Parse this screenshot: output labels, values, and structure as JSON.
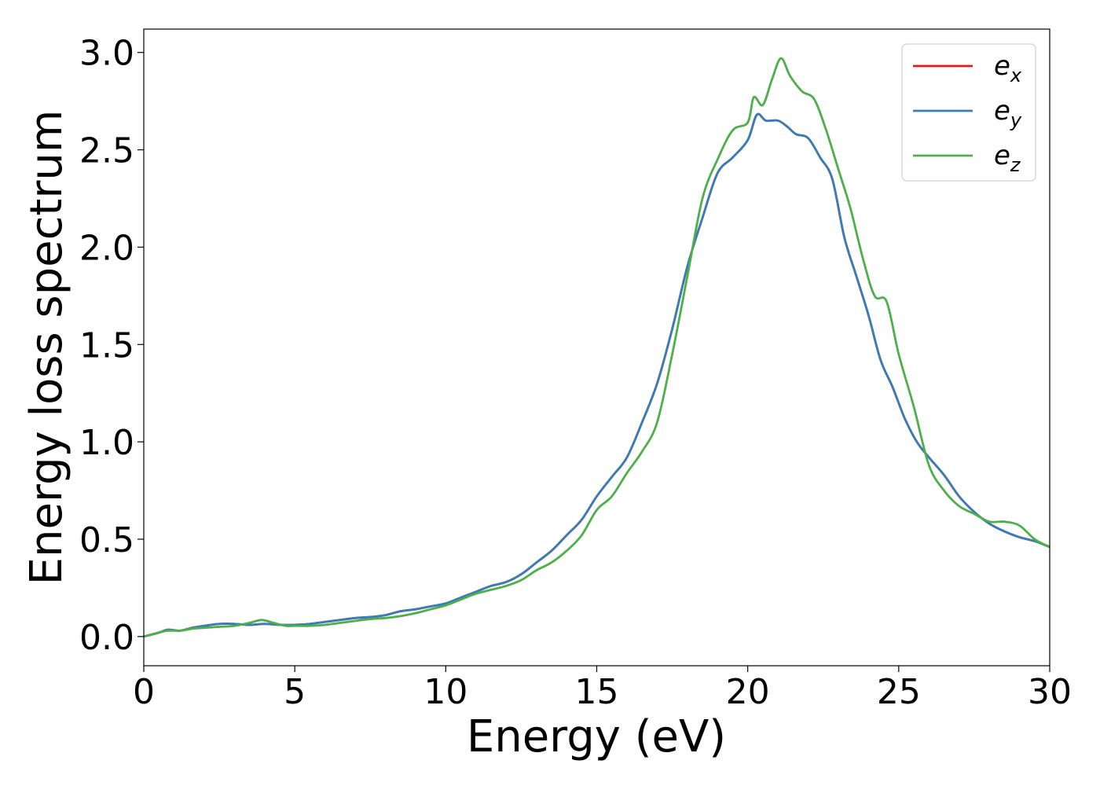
{
  "chart_data": {
    "type": "line",
    "title": "",
    "xlabel": "Energy (eV)",
    "ylabel": "Energy loss spectrum",
    "xlim": [
      0,
      30
    ],
    "ylim": [
      -0.15,
      3.12
    ],
    "xticks": [
      0,
      5,
      10,
      15,
      20,
      25,
      30
    ],
    "yticks": [
      0.0,
      0.5,
      1.0,
      1.5,
      2.0,
      2.5,
      3.0
    ],
    "xtick_labels": [
      "0",
      "5",
      "10",
      "15",
      "20",
      "25",
      "30"
    ],
    "ytick_labels": [
      "0.0",
      "0.5",
      "1.0",
      "1.5",
      "2.0",
      "2.5",
      "3.0"
    ],
    "grid": false,
    "legend_position": "top-right",
    "series": [
      {
        "name": "e_x",
        "label_base": "e",
        "label_sub": "x",
        "color": "#e41a1c",
        "x": [
          0,
          0.5,
          0.8,
          1.2,
          1.6,
          2,
          2.5,
          3,
          3.5,
          4,
          4.5,
          5,
          5.5,
          6,
          6.5,
          7,
          7.5,
          8,
          8.5,
          9,
          9.5,
          10,
          10.5,
          11,
          11.5,
          12,
          12.5,
          13,
          13.5,
          14,
          14.5,
          15,
          15.5,
          16,
          16.5,
          17,
          17.5,
          18,
          18.5,
          19,
          19.5,
          20,
          20.3,
          20.6,
          21,
          21.3,
          21.6,
          22,
          22.4,
          22.8,
          23.2,
          23.6,
          24,
          24.4,
          24.8,
          25.2,
          25.6,
          26,
          26.5,
          27,
          27.5,
          28,
          28.5,
          29,
          29.5,
          30
        ],
        "y": [
          0.0,
          0.02,
          0.035,
          0.03,
          0.045,
          0.055,
          0.065,
          0.065,
          0.06,
          0.065,
          0.06,
          0.06,
          0.065,
          0.075,
          0.085,
          0.095,
          0.1,
          0.11,
          0.13,
          0.14,
          0.155,
          0.17,
          0.2,
          0.23,
          0.26,
          0.28,
          0.32,
          0.38,
          0.44,
          0.52,
          0.6,
          0.72,
          0.82,
          0.92,
          1.1,
          1.3,
          1.58,
          1.9,
          2.15,
          2.38,
          2.46,
          2.55,
          2.68,
          2.65,
          2.65,
          2.62,
          2.58,
          2.56,
          2.46,
          2.35,
          2.05,
          1.85,
          1.65,
          1.42,
          1.28,
          1.12,
          1.0,
          0.92,
          0.83,
          0.72,
          0.64,
          0.58,
          0.54,
          0.51,
          0.49,
          0.46
        ]
      },
      {
        "name": "e_y",
        "label_base": "e",
        "label_sub": "y",
        "color": "#377eb8",
        "x": [
          0,
          0.5,
          0.8,
          1.2,
          1.6,
          2,
          2.5,
          3,
          3.5,
          4,
          4.5,
          5,
          5.5,
          6,
          6.5,
          7,
          7.5,
          8,
          8.5,
          9,
          9.5,
          10,
          10.5,
          11,
          11.5,
          12,
          12.5,
          13,
          13.5,
          14,
          14.5,
          15,
          15.5,
          16,
          16.5,
          17,
          17.5,
          18,
          18.5,
          19,
          19.5,
          20,
          20.3,
          20.6,
          21,
          21.3,
          21.6,
          22,
          22.4,
          22.8,
          23.2,
          23.6,
          24,
          24.4,
          24.8,
          25.2,
          25.6,
          26,
          26.5,
          27,
          27.5,
          28,
          28.5,
          29,
          29.5,
          30
        ],
        "y": [
          0.0,
          0.02,
          0.035,
          0.03,
          0.045,
          0.055,
          0.065,
          0.065,
          0.06,
          0.065,
          0.06,
          0.06,
          0.065,
          0.075,
          0.085,
          0.095,
          0.1,
          0.11,
          0.13,
          0.14,
          0.155,
          0.17,
          0.2,
          0.23,
          0.26,
          0.28,
          0.32,
          0.38,
          0.44,
          0.52,
          0.6,
          0.72,
          0.82,
          0.92,
          1.1,
          1.3,
          1.58,
          1.9,
          2.15,
          2.38,
          2.46,
          2.55,
          2.68,
          2.65,
          2.65,
          2.62,
          2.58,
          2.56,
          2.46,
          2.35,
          2.05,
          1.85,
          1.65,
          1.42,
          1.28,
          1.12,
          1.0,
          0.92,
          0.83,
          0.72,
          0.64,
          0.58,
          0.54,
          0.51,
          0.49,
          0.46
        ]
      },
      {
        "name": "e_z",
        "label_base": "e",
        "label_sub": "z",
        "color": "#4daf4a",
        "x": [
          0,
          0.5,
          0.8,
          1.2,
          1.6,
          2,
          2.5,
          3,
          3.5,
          3.9,
          4.3,
          4.7,
          5,
          5.5,
          6,
          6.5,
          7,
          7.5,
          8,
          8.5,
          9,
          9.5,
          10,
          10.5,
          11,
          11.5,
          12,
          12.5,
          13,
          13.5,
          14,
          14.5,
          15,
          15.5,
          16,
          16.5,
          17,
          17.5,
          18,
          18.5,
          19,
          19.5,
          20,
          20.2,
          20.5,
          20.8,
          21.1,
          21.4,
          21.8,
          22.2,
          22.6,
          23,
          23.4,
          23.8,
          24.2,
          24.6,
          25,
          25.5,
          26,
          26.5,
          27,
          27.5,
          28,
          28.5,
          29,
          29.5,
          30
        ],
        "y": [
          0.0,
          0.02,
          0.03,
          0.03,
          0.04,
          0.045,
          0.05,
          0.055,
          0.07,
          0.085,
          0.07,
          0.055,
          0.055,
          0.055,
          0.06,
          0.07,
          0.08,
          0.09,
          0.095,
          0.105,
          0.12,
          0.14,
          0.16,
          0.19,
          0.22,
          0.24,
          0.26,
          0.29,
          0.34,
          0.38,
          0.44,
          0.52,
          0.65,
          0.72,
          0.84,
          0.95,
          1.1,
          1.45,
          1.85,
          2.25,
          2.45,
          2.6,
          2.64,
          2.77,
          2.73,
          2.86,
          2.97,
          2.88,
          2.8,
          2.76,
          2.6,
          2.4,
          2.2,
          1.95,
          1.75,
          1.72,
          1.45,
          1.18,
          0.88,
          0.75,
          0.67,
          0.63,
          0.59,
          0.59,
          0.57,
          0.5,
          0.46
        ]
      }
    ]
  }
}
